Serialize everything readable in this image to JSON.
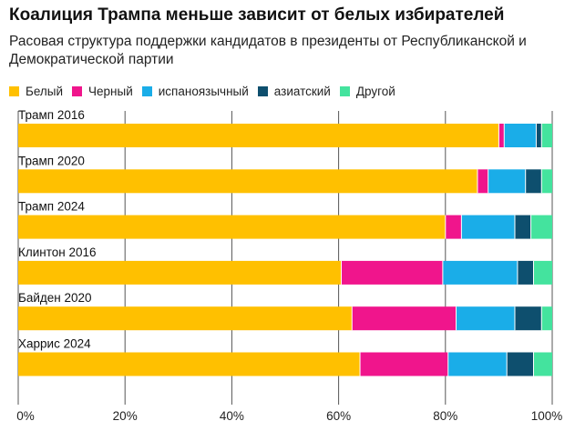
{
  "header": {
    "title": "Коалиция Трампа меньше зависит от белых избирателей",
    "subtitle": "Расовая структура поддержки кандидатов в президенты от Республиканской и Демократической партии"
  },
  "chart_data": {
    "type": "bar",
    "orientation": "horizontal",
    "stacked": true,
    "title": "Коалиция Трампа меньше зависит от белых избирателей",
    "subtitle": "Расовая структура поддержки кандидатов в президенты от Республиканской и Демократической партии",
    "xlabel": "",
    "ylabel": "",
    "xlim": [
      0,
      100
    ],
    "x_ticks": [
      "0%",
      "20%",
      "40%",
      "60%",
      "80%",
      "100%"
    ],
    "legend_position": "top-left",
    "grid": true,
    "categories": [
      "Трамп 2016",
      "Трамп 2020",
      "Трамп 2024",
      "Клинтон 2016",
      "Байден 2020",
      "Харрис 2024"
    ],
    "series": [
      {
        "name": "Белый",
        "color": "#FFC000",
        "values": [
          90,
          86,
          80,
          60.5,
          62.5,
          64
        ]
      },
      {
        "name": "Черный",
        "color": "#F0158C",
        "values": [
          1,
          2,
          3,
          19,
          19.5,
          16.5
        ]
      },
      {
        "name": "испаноязычный",
        "color": "#1AADE8",
        "values": [
          6,
          7,
          10,
          14,
          11,
          11
        ]
      },
      {
        "name": "азиатский",
        "color": "#0E4F6E",
        "values": [
          1,
          3,
          3,
          3,
          5,
          5
        ]
      },
      {
        "name": "Другой",
        "color": "#44E39E",
        "values": [
          2,
          2,
          4,
          3.5,
          2,
          3.5
        ]
      }
    ]
  }
}
